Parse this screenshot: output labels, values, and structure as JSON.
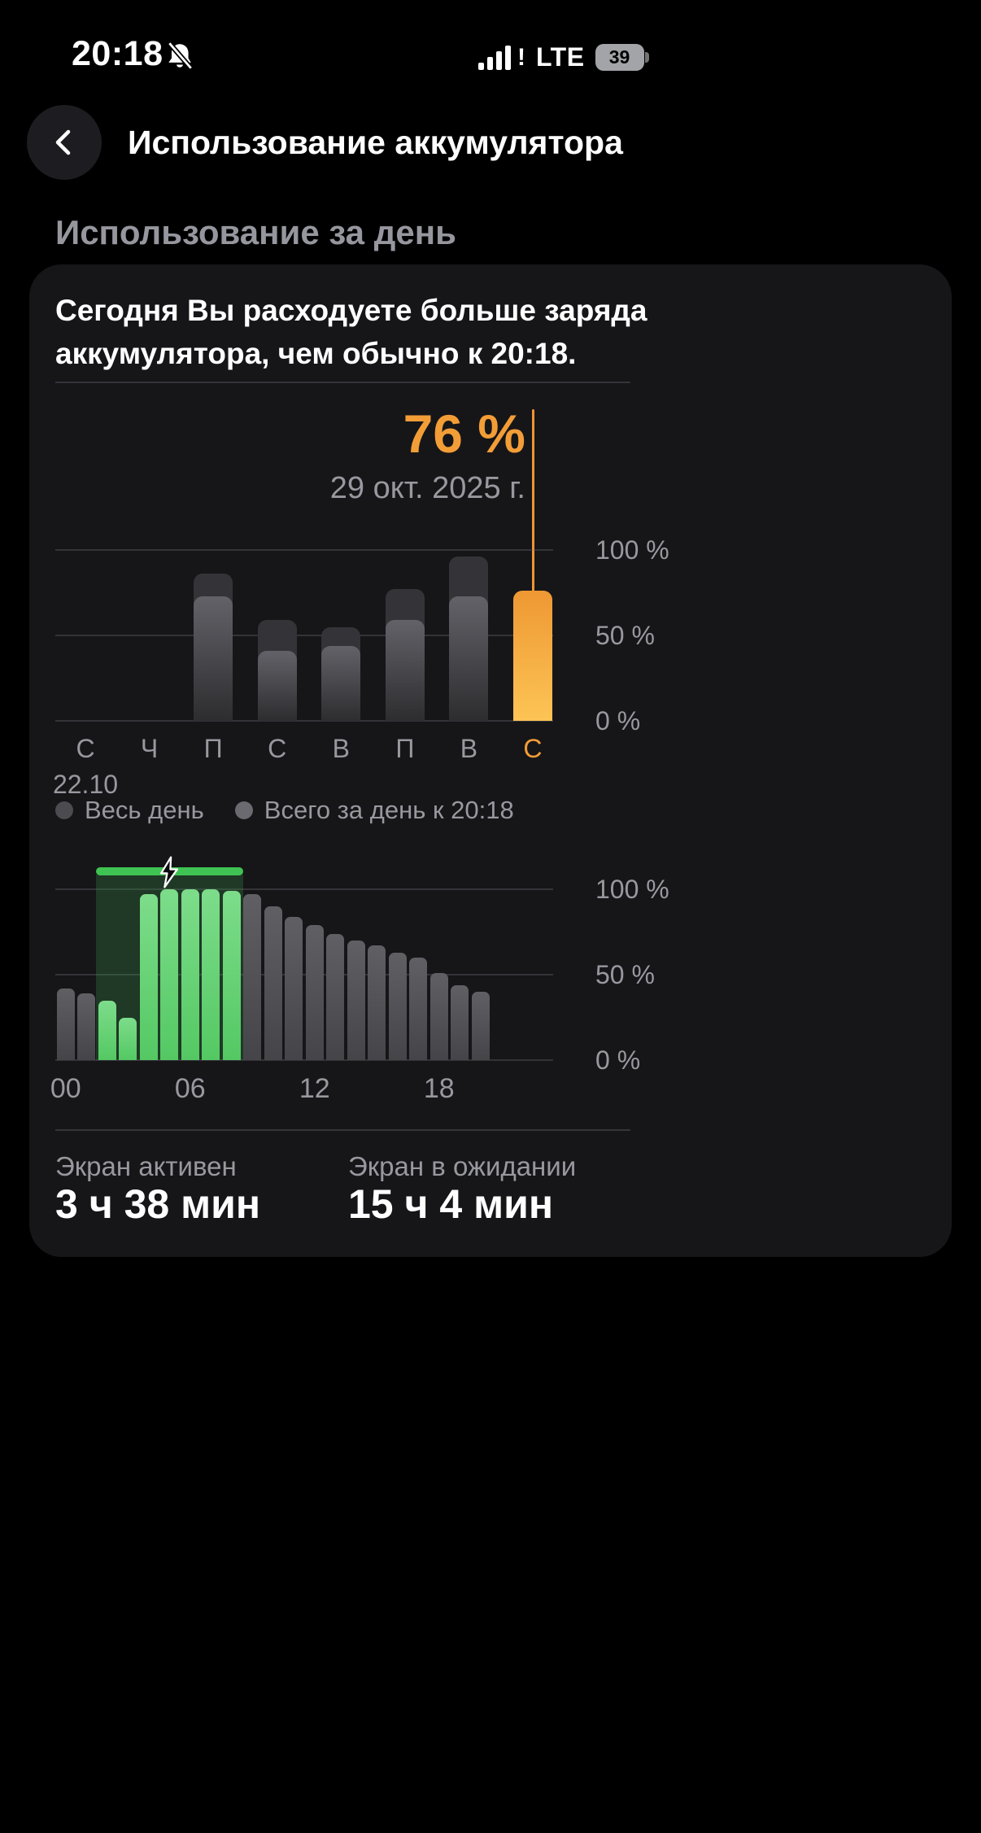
{
  "status_bar": {
    "time": "20:18",
    "signal_alert": "!",
    "network": "LTE",
    "battery_percent": "39"
  },
  "header": {
    "title": "Использование аккумулятора"
  },
  "section": {
    "title": "Использование за день"
  },
  "card": {
    "summary": "Сегодня Вы расходуете больше заряда аккумулятора, чем обычно к 20:18.",
    "legend": [
      {
        "label": "Весь день",
        "color": "#4b4b50"
      },
      {
        "label": "Всего за день к 20:18",
        "color": "#6a6a70"
      }
    ],
    "footer": [
      {
        "label": "Экран активен",
        "value": "3 ч 38 мин"
      },
      {
        "label": "Экран в ожидании",
        "value": "15 ч 4 мин"
      }
    ]
  },
  "colors": {
    "accent_orange": "#f39d37",
    "charge_green": "#3fc352",
    "text_gray": "#98989f"
  },
  "chart_data": [
    {
      "type": "bar",
      "categories": [
        "С",
        "Ч",
        "П",
        "С",
        "В",
        "П",
        "В",
        "С"
      ],
      "first_category_sublabel": "22.10",
      "series": [
        {
          "name": "Весь день",
          "values": [
            0,
            0,
            86,
            59,
            55,
            77,
            96,
            0
          ]
        },
        {
          "name": "Всего за день к 20:18",
          "values": [
            0,
            0,
            73,
            41,
            44,
            59,
            73,
            76
          ]
        }
      ],
      "highlight": {
        "index": 7,
        "value": 76,
        "label": "76 %",
        "date": "29 окт. 2025 г."
      },
      "ylim": [
        0,
        100
      ],
      "yticks": [
        "100 %",
        "50 %",
        "0 %"
      ],
      "grid": true,
      "legend_position": "bottom"
    },
    {
      "type": "bar",
      "x": [
        0,
        1,
        2,
        3,
        4,
        5,
        6,
        7,
        8,
        9,
        10,
        11,
        12,
        13,
        14,
        15,
        16,
        17,
        18,
        19,
        20
      ],
      "values": [
        42,
        39,
        35,
        25,
        97,
        100,
        100,
        100,
        99,
        97,
        90,
        84,
        79,
        74,
        70,
        67,
        63,
        60,
        51,
        44,
        40
      ],
      "charging_range": [
        2,
        8
      ],
      "xticks": [
        {
          "hour": 0,
          "label": "00"
        },
        {
          "hour": 6,
          "label": "06"
        },
        {
          "hour": 12,
          "label": "12"
        },
        {
          "hour": 18,
          "label": "18"
        }
      ],
      "ylim": [
        0,
        100
      ],
      "yticks": [
        "100 %",
        "50 %",
        "0 %"
      ],
      "grid": true
    }
  ]
}
